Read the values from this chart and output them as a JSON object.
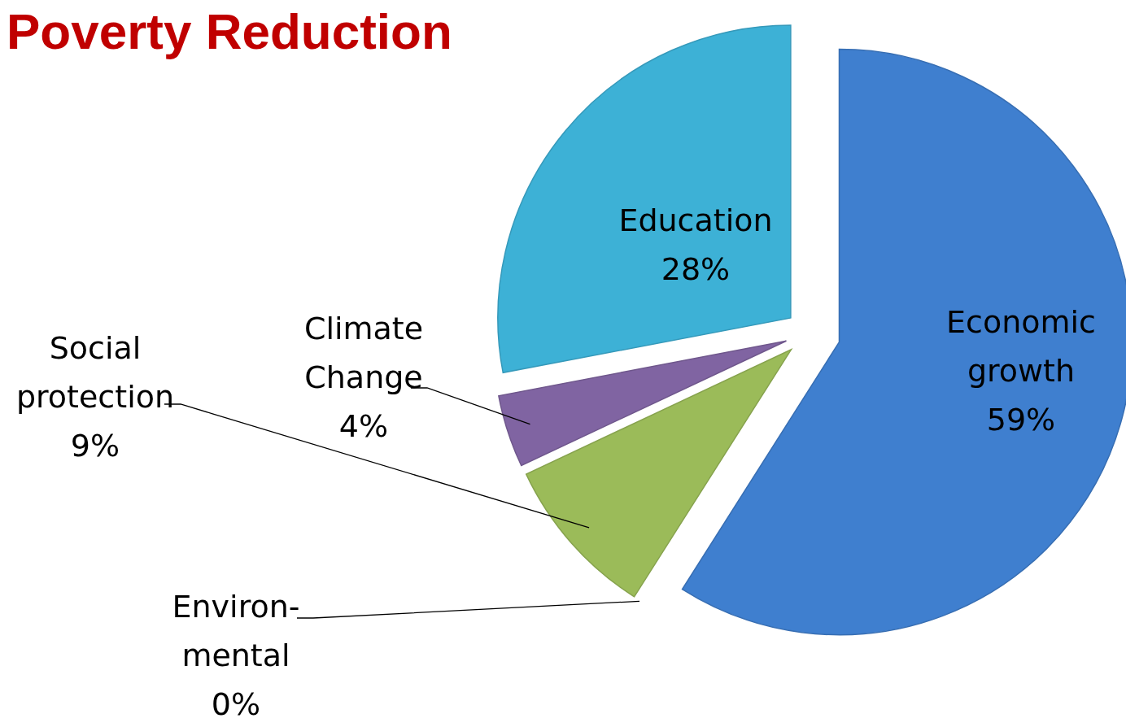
{
  "chart_data": {
    "type": "pie",
    "title": "Poverty Reduction",
    "categories": [
      "Economic growth",
      "Environ-mental",
      "Social protection",
      "Climate Change",
      "Education"
    ],
    "values": [
      59,
      0,
      9,
      4,
      28
    ],
    "colors": [
      "#3f7fcf",
      null,
      "#9bbb59",
      "#8064a2",
      "#3db1d6"
    ],
    "value_labels": [
      "59%",
      "0%",
      "9%",
      "4%",
      "28%"
    ]
  }
}
